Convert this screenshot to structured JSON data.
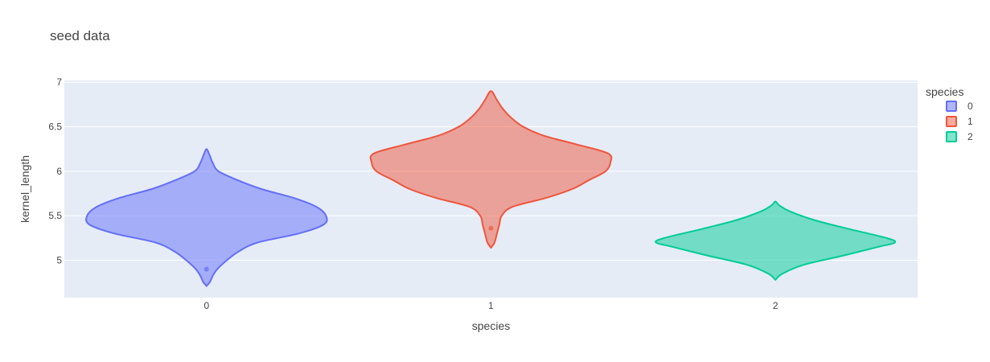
{
  "chart_data": {
    "type": "violin",
    "title": "seed data",
    "xlabel": "species",
    "ylabel": "kernel_length",
    "categories": [
      "0",
      "1",
      "2"
    ],
    "ylim": [
      4.58,
      7.02
    ],
    "yticks": [
      5,
      5.5,
      6,
      6.5,
      7
    ],
    "ytick_labels": [
      "5",
      "5.5",
      "6",
      "6.5",
      "7"
    ],
    "grid": true,
    "legend": {
      "title": "species",
      "placement": "top-right"
    },
    "series": [
      {
        "name": "0",
        "color": "#636efa",
        "outlier": 4.9,
        "density": [
          [
            4.71,
            0.0
          ],
          [
            4.76,
            0.03
          ],
          [
            4.82,
            0.05
          ],
          [
            4.9,
            0.09
          ],
          [
            5.0,
            0.17
          ],
          [
            5.1,
            0.27
          ],
          [
            5.2,
            0.43
          ],
          [
            5.3,
            0.77
          ],
          [
            5.4,
            0.98
          ],
          [
            5.5,
            1.0
          ],
          [
            5.6,
            0.92
          ],
          [
            5.7,
            0.73
          ],
          [
            5.8,
            0.46
          ],
          [
            5.9,
            0.26
          ],
          [
            6.0,
            0.1
          ],
          [
            6.1,
            0.05
          ],
          [
            6.2,
            0.02
          ],
          [
            6.25,
            0.0
          ]
        ]
      },
      {
        "name": "1",
        "color": "#ef553b",
        "outlier": 5.36,
        "density": [
          [
            5.14,
            0.0
          ],
          [
            5.2,
            0.03
          ],
          [
            5.3,
            0.05
          ],
          [
            5.4,
            0.07
          ],
          [
            5.5,
            0.09
          ],
          [
            5.6,
            0.18
          ],
          [
            5.7,
            0.46
          ],
          [
            5.8,
            0.68
          ],
          [
            5.9,
            0.82
          ],
          [
            6.0,
            0.96
          ],
          [
            6.1,
            1.0
          ],
          [
            6.2,
            0.98
          ],
          [
            6.3,
            0.72
          ],
          [
            6.4,
            0.44
          ],
          [
            6.5,
            0.27
          ],
          [
            6.6,
            0.17
          ],
          [
            6.7,
            0.1
          ],
          [
            6.8,
            0.05
          ],
          [
            6.9,
            0.0
          ]
        ]
      },
      {
        "name": "2",
        "color": "#00cc96",
        "density": [
          [
            4.78,
            0.0
          ],
          [
            4.85,
            0.06
          ],
          [
            4.95,
            0.24
          ],
          [
            5.05,
            0.56
          ],
          [
            5.15,
            0.86
          ],
          [
            5.2,
            1.0
          ],
          [
            5.25,
            0.93
          ],
          [
            5.35,
            0.62
          ],
          [
            5.45,
            0.33
          ],
          [
            5.55,
            0.12
          ],
          [
            5.62,
            0.03
          ],
          [
            5.66,
            0.0
          ]
        ]
      }
    ]
  }
}
